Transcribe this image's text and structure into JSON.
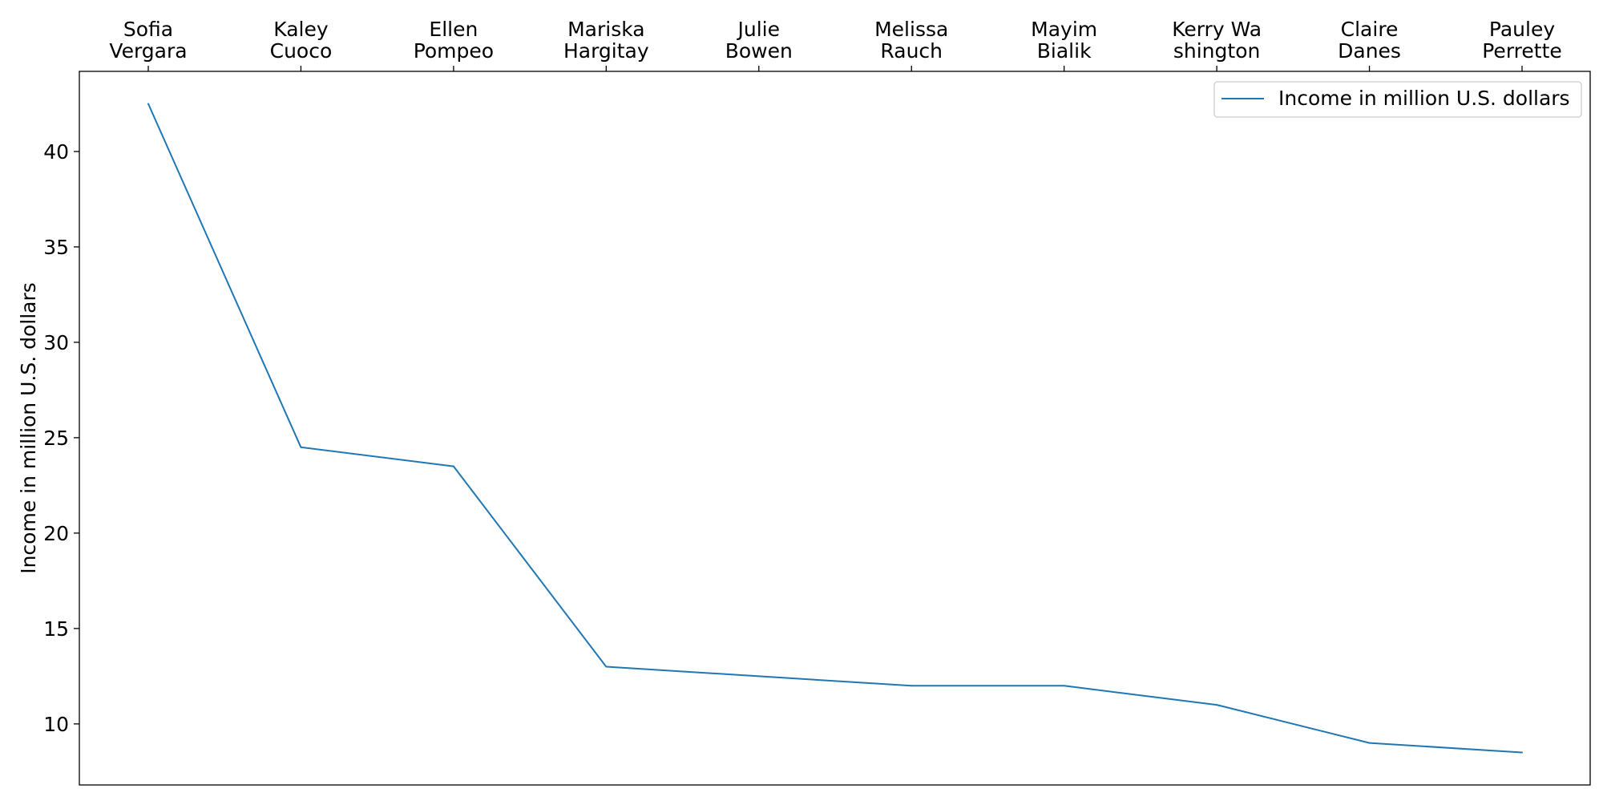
{
  "chart_data": {
    "type": "line",
    "categories": [
      [
        "Sofia",
        "Vergara"
      ],
      [
        "Kaley",
        "Cuoco"
      ],
      [
        "Ellen",
        "Pompeo"
      ],
      [
        "Mariska",
        "Hargitay"
      ],
      [
        "Julie",
        "Bowen"
      ],
      [
        "Melissa",
        "Rauch"
      ],
      [
        "Mayim",
        "Bialik"
      ],
      [
        "Kerry Wa",
        "shington"
      ],
      [
        "Claire",
        "Danes"
      ],
      [
        "Pauley",
        "Perrette"
      ]
    ],
    "series": [
      {
        "name": "Income in million U.S. dollars",
        "values": [
          42.5,
          24.5,
          23.5,
          13.0,
          12.5,
          12.0,
          12.0,
          11.0,
          9.0,
          8.5
        ],
        "color": "#1f77b4"
      }
    ],
    "title": "",
    "xlabel": "",
    "ylabel": "Income in million U.S. dollars",
    "ylim": [
      6.8,
      44.2
    ],
    "yticks": [
      10,
      15,
      20,
      25,
      30,
      35,
      40
    ],
    "x_axis_position": "top",
    "grid": false,
    "legend_position": "top-right"
  }
}
